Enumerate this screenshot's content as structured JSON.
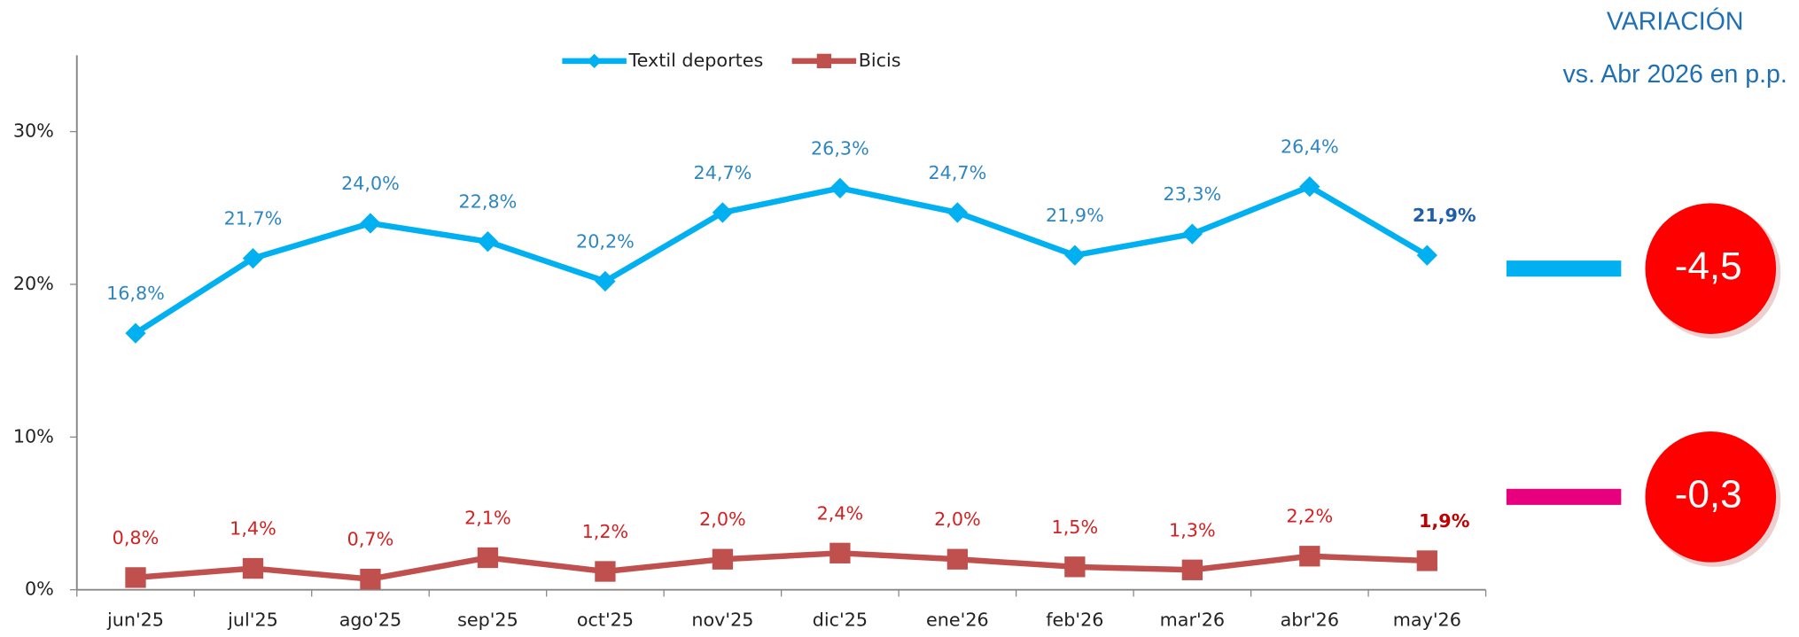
{
  "chart_data": {
    "type": "line",
    "categories": [
      "jun'25",
      "jul'25",
      "ago'25",
      "sep'25",
      "oct'25",
      "nov'25",
      "dic'25",
      "ene'26",
      "feb'26",
      "mar'26",
      "abr'26",
      "may'26"
    ],
    "series": [
      {
        "name": "Textil deportes",
        "color": "#00b0f0",
        "label_color": "#2e86c1",
        "marker": "diamond",
        "values": [
          16.8,
          21.7,
          24.0,
          22.8,
          20.2,
          24.7,
          26.3,
          24.7,
          21.9,
          23.3,
          26.4,
          21.9
        ],
        "value_labels": [
          "16,8%",
          "21,7%",
          "24,0%",
          "22,8%",
          "20,2%",
          "24,7%",
          "26,3%",
          "24,7%",
          "21,9%",
          "23,3%",
          "26,4%",
          "21,9%"
        ]
      },
      {
        "name": "Bicis",
        "color": "#c0504d",
        "label_color": "#d42020",
        "marker": "square",
        "values": [
          0.8,
          1.4,
          0.7,
          2.1,
          1.2,
          2.0,
          2.4,
          2.0,
          1.5,
          1.3,
          2.2,
          1.9
        ],
        "value_labels": [
          "0,8%",
          "1,4%",
          "0,7%",
          "2,1%",
          "1,2%",
          "2,0%",
          "2,4%",
          "2,0%",
          "1,5%",
          "1,3%",
          "2,2%",
          "1,9%"
        ]
      }
    ],
    "ylim": [
      0,
      35
    ],
    "yticks": [
      {
        "value": 0,
        "label": "0%"
      },
      {
        "value": 10,
        "label": "10%"
      },
      {
        "value": 20,
        "label": "20%"
      },
      {
        "value": 30,
        "label": "30%"
      }
    ],
    "legend": "top",
    "bold_last_label": true
  },
  "variation": {
    "title": "VARIACIÓN",
    "subtitle": "vs. Abr 2026 en p.p.",
    "items": [
      {
        "color": "#00b0f0",
        "label": "-4,5"
      },
      {
        "color": "#e6007e",
        "label": "-0,3"
      }
    ]
  }
}
